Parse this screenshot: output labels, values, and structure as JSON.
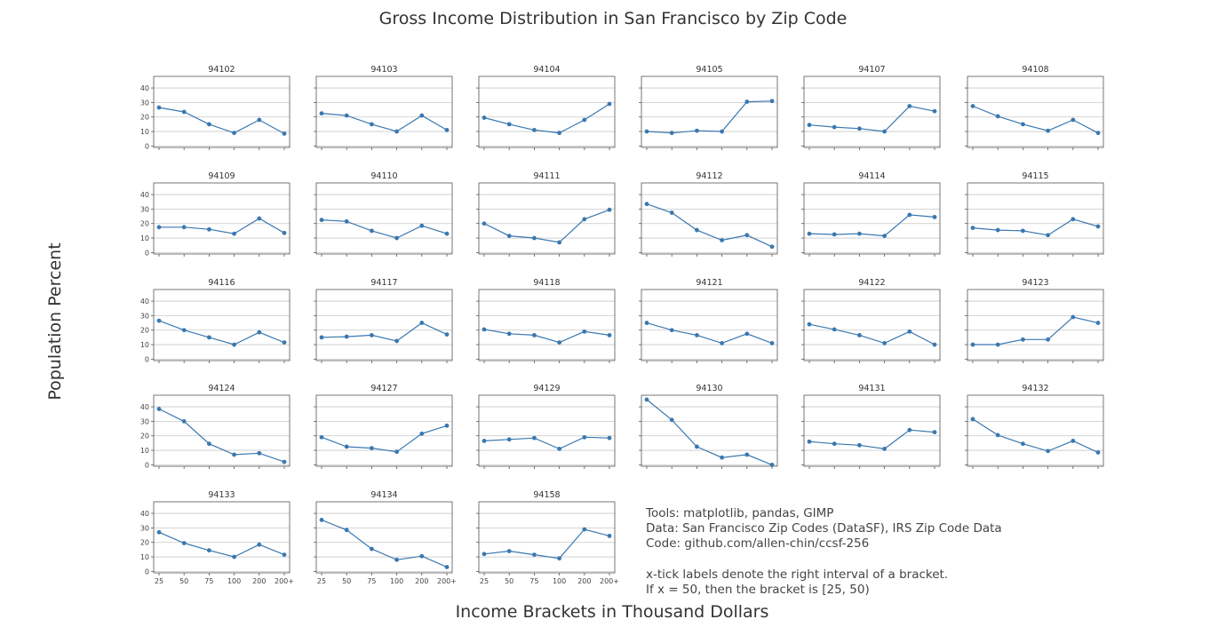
{
  "title": "Gross Income Distribution in San Francisco by Zip Code",
  "ylabel": "Population Percent",
  "xlabel": "Income Brackets in Thousand Dollars",
  "notes": {
    "tools": "Tools: matplotlib, pandas, GIMP",
    "data": "Data: San Francisco Zip Codes (DataSF), IRS Zip Code Data",
    "code": "Code: github.com/allen-chin/ccsf-256",
    "interval_note": "x-tick labels denote the right interval of a bracket.",
    "bracket_example": "If x = 50, then the bracket is [25, 50)"
  },
  "colors": {
    "line": "#3a78b0",
    "grid": "#c8c8c8",
    "axis": "#555555",
    "text": "#333333"
  },
  "chart_data": {
    "type": "line",
    "layout": "small-multiples 6 columns x 5 rows, shared axes",
    "x_tick_labels": [
      "25",
      "50",
      "75",
      "100",
      "200",
      "200+"
    ],
    "y_ticks": [
      0,
      10,
      20,
      30,
      40
    ],
    "ylim": [
      -1,
      48
    ],
    "grid": true,
    "markers": "circle",
    "panels": [
      {
        "title": "94102",
        "values": [
          26.5,
          23.5,
          15,
          9,
          18,
          8.5
        ]
      },
      {
        "title": "94103",
        "values": [
          22.5,
          21,
          15,
          10,
          21,
          11
        ]
      },
      {
        "title": "94104",
        "values": [
          19.5,
          15,
          11,
          9,
          18,
          29
        ]
      },
      {
        "title": "94105",
        "values": [
          10,
          9,
          10.5,
          10,
          30.5,
          31
        ]
      },
      {
        "title": "94107",
        "values": [
          14.5,
          13,
          12,
          10,
          27.5,
          24
        ]
      },
      {
        "title": "94108",
        "values": [
          27.5,
          20.5,
          15,
          10.5,
          18,
          9
        ]
      },
      {
        "title": "94109",
        "values": [
          17.5,
          17.5,
          16,
          13,
          23.5,
          13.5
        ]
      },
      {
        "title": "94110",
        "values": [
          22.5,
          21.5,
          15,
          10,
          18.5,
          13
        ]
      },
      {
        "title": "94111",
        "values": [
          20,
          11.5,
          10,
          7,
          23,
          29.5
        ]
      },
      {
        "title": "94112",
        "values": [
          33.5,
          27.5,
          15.5,
          8.5,
          12,
          4
        ]
      },
      {
        "title": "94114",
        "values": [
          13,
          12.5,
          13,
          11.5,
          26,
          24.5
        ]
      },
      {
        "title": "94115",
        "values": [
          17,
          15.5,
          15,
          12,
          23,
          18
        ]
      },
      {
        "title": "94116",
        "values": [
          26.5,
          20,
          15,
          10,
          18.5,
          11.5
        ]
      },
      {
        "title": "94117",
        "values": [
          15,
          15.5,
          16.5,
          12.5,
          25,
          17
        ]
      },
      {
        "title": "94118",
        "values": [
          20.5,
          17.5,
          16.5,
          11.5,
          19,
          16.5
        ]
      },
      {
        "title": "94121",
        "values": [
          25,
          20,
          16.5,
          11,
          17.5,
          11
        ]
      },
      {
        "title": "94122",
        "values": [
          24,
          20.5,
          16.5,
          11,
          19,
          10
        ]
      },
      {
        "title": "94123",
        "values": [
          10,
          10,
          13.5,
          13.5,
          29,
          25
        ]
      },
      {
        "title": "94124",
        "values": [
          38.5,
          30,
          14.5,
          7,
          8,
          2
        ]
      },
      {
        "title": "94127",
        "values": [
          19,
          12.5,
          11.5,
          9,
          21.5,
          27
        ]
      },
      {
        "title": "94129",
        "values": [
          16.5,
          17.5,
          18.5,
          11,
          19,
          18.5
        ]
      },
      {
        "title": "94130",
        "values": [
          45,
          31,
          12.5,
          5,
          7,
          0
        ]
      },
      {
        "title": "94131",
        "values": [
          16,
          14.5,
          13.5,
          11,
          24,
          22.5
        ]
      },
      {
        "title": "94132",
        "values": [
          31.5,
          20.5,
          14.5,
          9.5,
          16.5,
          8.5
        ]
      },
      {
        "title": "94133",
        "values": [
          27,
          19.5,
          14.5,
          10,
          18.5,
          11.5
        ]
      },
      {
        "title": "94134",
        "values": [
          35.5,
          28.5,
          15.5,
          8,
          10.5,
          3
        ]
      },
      {
        "title": "94158",
        "values": [
          12,
          14,
          11.5,
          9,
          29,
          24.5
        ]
      }
    ]
  }
}
